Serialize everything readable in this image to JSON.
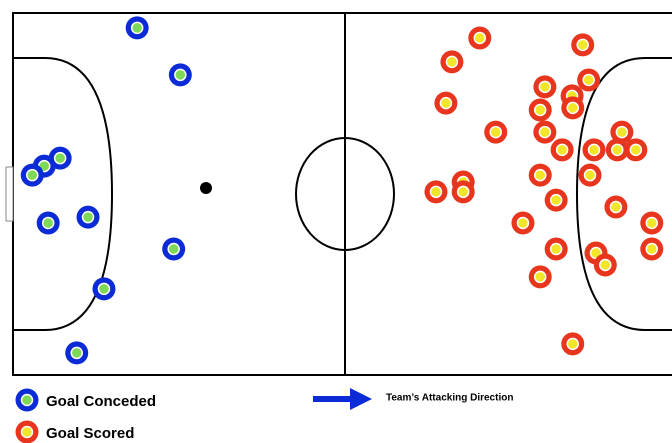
{
  "chart_data": {
    "type": "scatter",
    "xlim": [
      0,
      100
    ],
    "ylim": [
      0,
      100
    ],
    "series": [
      {
        "name": "Goal Conceded",
        "color": "#0a2bd6",
        "center_color": "#7ed957",
        "x": [
          18.7,
          25.2,
          7.1,
          4.7,
          2.9,
          5.3,
          11.3,
          24.2,
          13.7,
          9.6
        ],
        "values": [
          95.9,
          82.9,
          59.9,
          57.7,
          55.2,
          42.0,
          43.6,
          34.8,
          23.8,
          6.1
        ]
      },
      {
        "name": "Goal Scored",
        "color": "#e8351e",
        "center_color": "#f3e62a",
        "x": [
          70.3,
          85.8,
          66.1,
          86.7,
          80.1,
          84.2,
          65.2,
          79.4,
          84.3,
          72.7,
          80.1,
          91.7,
          82.7,
          87.5,
          91.0,
          93.8,
          79.4,
          86.9,
          67.8,
          67.8,
          63.7,
          81.8,
          90.8,
          76.8,
          96.2,
          81.8,
          87.8,
          89.2,
          96.2,
          79.4,
          84.3
        ],
        "values": [
          93.1,
          91.2,
          86.5,
          81.5,
          79.6,
          77.1,
          75.1,
          73.2,
          73.8,
          67.1,
          67.1,
          67.1,
          62.2,
          62.2,
          62.2,
          62.2,
          55.2,
          55.2,
          53.3,
          50.6,
          50.6,
          48.3,
          46.4,
          42.0,
          42.0,
          34.8,
          33.7,
          30.4,
          34.8,
          27.1,
          8.6
        ]
      }
    ],
    "annotations": [
      "Team’s Attacking Direction"
    ]
  }
}
